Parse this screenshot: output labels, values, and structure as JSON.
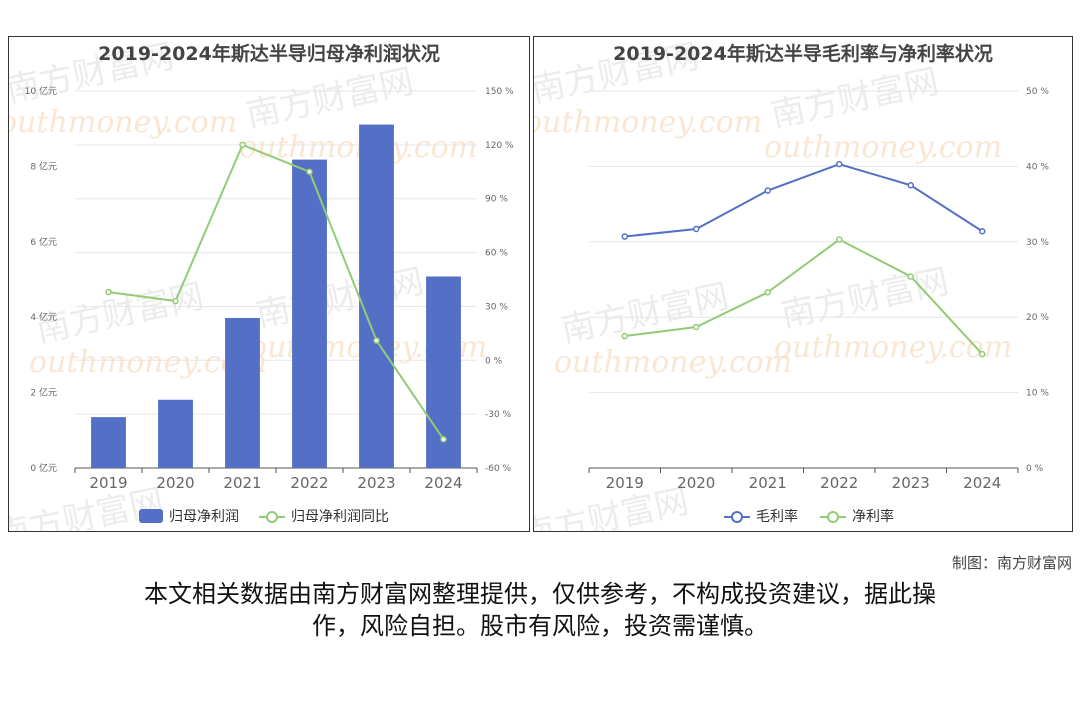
{
  "chart_data": [
    {
      "type": "bar",
      "title": "2019-2024年斯达半导归母净利润状况",
      "categories": [
        "2019",
        "2020",
        "2021",
        "2022",
        "2023",
        "2024"
      ],
      "series": [
        {
          "name": "归母净利润",
          "type": "bar",
          "axis": "left",
          "values": [
            1.35,
            1.81,
            3.98,
            8.18,
            9.11,
            5.08
          ],
          "color": "#5470c6"
        },
        {
          "name": "归母净利润同比",
          "type": "line",
          "axis": "right",
          "values": [
            38,
            33,
            120,
            105,
            11,
            -44
          ],
          "color": "#91cc75"
        }
      ],
      "ylim": [
        0,
        10
      ],
      "yticks": [
        "0 亿元",
        "2 亿元",
        "4 亿元",
        "6 亿元",
        "8 亿元",
        "10 亿元"
      ],
      "y2lim": [
        -60,
        150
      ],
      "y2ticks": [
        "-60 %",
        "-30 %",
        "0 %",
        "30 %",
        "60 %",
        "90 %",
        "120 %",
        "150 %"
      ],
      "grid": true,
      "legend": "bottom"
    },
    {
      "type": "line",
      "title": "2019-2024年斯达半导毛利率与净利率状况",
      "categories": [
        "2019",
        "2020",
        "2021",
        "2022",
        "2023",
        "2024"
      ],
      "series": [
        {
          "name": "毛利率",
          "values": [
            30.7,
            31.7,
            36.8,
            40.3,
            37.5,
            31.4
          ],
          "color": "#5470c6"
        },
        {
          "name": "净利率",
          "values": [
            17.5,
            18.7,
            23.3,
            30.3,
            25.4,
            15.1
          ],
          "color": "#91cc75"
        }
      ],
      "ylim": [
        0,
        50
      ],
      "yticks": [
        "0 %",
        "10 %",
        "20 %",
        "30 %",
        "40 %",
        "50 %"
      ],
      "grid": true,
      "legend": "bottom"
    }
  ],
  "watermark": {
    "cn": "南方财富网",
    "en": "outhmoney.com"
  },
  "credit": "制图：南方财富网",
  "disclaimer_line1": "本文相关数据由南方财富网整理提供，仅供参考，不构成投资建议，据此操",
  "disclaimer_line2": "作，风险自担。股市有风险，投资需谨慎。"
}
